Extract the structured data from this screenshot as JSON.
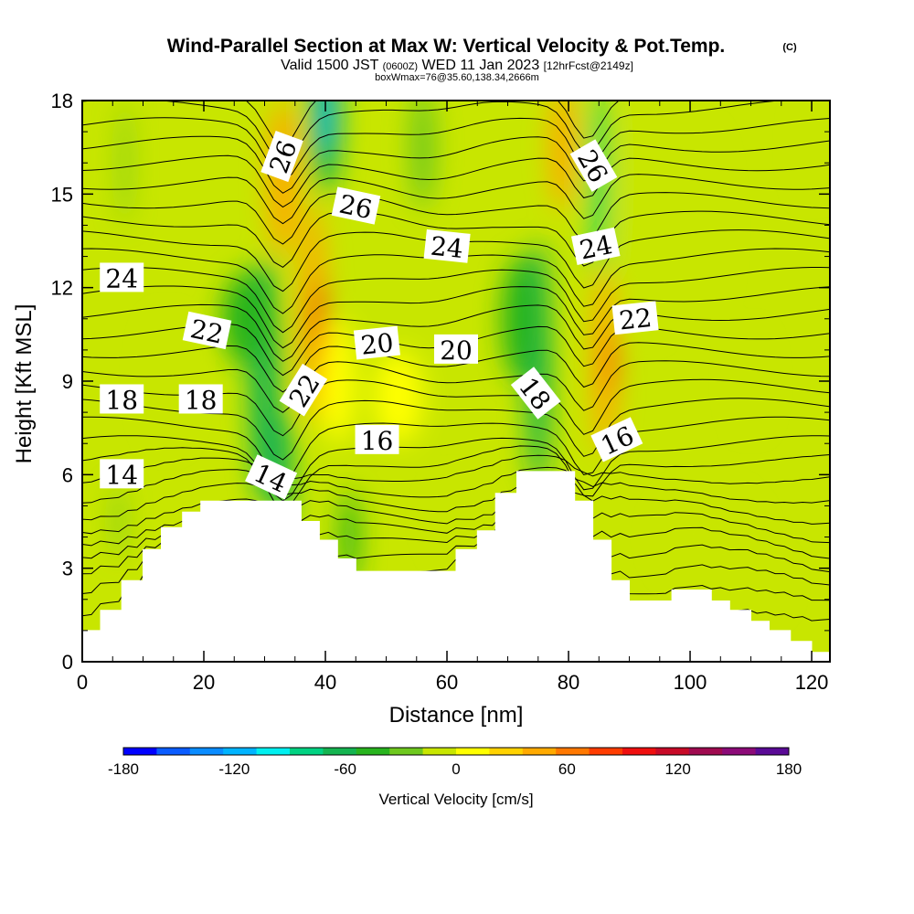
{
  "title": "Wind-Parallel Section at Max W: Vertical Velocity & Pot.Temp.",
  "title_mark": "(C)",
  "subtitle": {
    "valid": "Valid 1500 JST",
    "utc": "(0600Z)",
    "date": "WED 11 Jan 2023",
    "fcst": "[12hrFcst@2149z]"
  },
  "box_info": "boxWmax=76@35.60,138.34,2666m",
  "chart_data": {
    "type": "heatmap",
    "xlabel": "Distance [nm]",
    "ylabel": "Height [Kft MSL]",
    "xlim": [
      0,
      123
    ],
    "ylim": [
      0,
      18
    ],
    "x_ticks": [
      0,
      20,
      40,
      60,
      80,
      100,
      120
    ],
    "y_ticks": [
      0,
      3,
      6,
      9,
      12,
      15,
      18
    ],
    "grid": false,
    "colorbar": {
      "label": "Vertical Velocity [cm/s]",
      "min": -180,
      "max": 180,
      "step": 20,
      "tick_values": [
        -180,
        -120,
        -60,
        0,
        60,
        120,
        180
      ],
      "tick_labels": [
        "-180",
        "-120",
        "-60",
        "0",
        "60",
        "120",
        "180"
      ],
      "colors": [
        "#0000ff",
        "#0a5cff",
        "#0a8cff",
        "#00b4ff",
        "#00f0f0",
        "#00d282",
        "#14b450",
        "#28b41e",
        "#6ec81e",
        "#c8e600",
        "#ffff00",
        "#ffd200",
        "#ffaa00",
        "#ff7800",
        "#ff3c00",
        "#f00f0f",
        "#c80a28",
        "#a00a50",
        "#8c0a78",
        "#5a0a96"
      ]
    },
    "contour_field": "Potential Temperature (C)",
    "contour_labels": [
      {
        "text": "26",
        "x": 33,
        "y": 16.2,
        "angle": -70
      },
      {
        "text": "26",
        "x": 45,
        "y": 14.6,
        "angle": 12
      },
      {
        "text": "26",
        "x": 84,
        "y": 15.9,
        "angle": 60
      },
      {
        "text": "24",
        "x": 6.5,
        "y": 12.3,
        "angle": 0
      },
      {
        "text": "24",
        "x": 60,
        "y": 13.3,
        "angle": 6
      },
      {
        "text": "24",
        "x": 84.5,
        "y": 13.3,
        "angle": -12
      },
      {
        "text": "22",
        "x": 20.5,
        "y": 10.6,
        "angle": 12
      },
      {
        "text": "22",
        "x": 36.5,
        "y": 8.7,
        "angle": -58
      },
      {
        "text": "22",
        "x": 91,
        "y": 11.0,
        "angle": -6
      },
      {
        "text": "20",
        "x": 48.5,
        "y": 10.2,
        "angle": -6
      },
      {
        "text": "20",
        "x": 61.5,
        "y": 10.0,
        "angle": 0
      },
      {
        "text": "18",
        "x": 6.5,
        "y": 8.4,
        "angle": 0
      },
      {
        "text": "18",
        "x": 19.5,
        "y": 8.4,
        "angle": 0
      },
      {
        "text": "18",
        "x": 74.5,
        "y": 8.6,
        "angle": 52
      },
      {
        "text": "16",
        "x": 48.5,
        "y": 7.1,
        "angle": 0
      },
      {
        "text": "16",
        "x": 88,
        "y": 7.1,
        "angle": -25
      },
      {
        "text": "14",
        "x": 6.5,
        "y": 6.0,
        "angle": 0
      },
      {
        "text": "14",
        "x": 31,
        "y": 5.9,
        "angle": 25
      }
    ],
    "terrain_height": [
      [
        0,
        1.0
      ],
      [
        3,
        1.0
      ],
      [
        3,
        1.65
      ],
      [
        6.5,
        1.65
      ],
      [
        6.5,
        2.6
      ],
      [
        10,
        2.6
      ],
      [
        10,
        3.6
      ],
      [
        13,
        3.6
      ],
      [
        13,
        4.3
      ],
      [
        16.5,
        4.3
      ],
      [
        16.5,
        4.8
      ],
      [
        19.5,
        4.8
      ],
      [
        19.5,
        5.15
      ],
      [
        36,
        5.15
      ],
      [
        36,
        4.5
      ],
      [
        39,
        4.5
      ],
      [
        39,
        3.9
      ],
      [
        42,
        3.9
      ],
      [
        42,
        3.3
      ],
      [
        45,
        3.3
      ],
      [
        45,
        2.9
      ],
      [
        61.5,
        2.9
      ],
      [
        61.5,
        3.6
      ],
      [
        65,
        3.6
      ],
      [
        65,
        4.2
      ],
      [
        68,
        4.2
      ],
      [
        68,
        5.4
      ],
      [
        71.5,
        5.4
      ],
      [
        71.5,
        6.1
      ],
      [
        81,
        6.1
      ],
      [
        81,
        5.15
      ],
      [
        84,
        5.15
      ],
      [
        84,
        3.9
      ],
      [
        87,
        3.9
      ],
      [
        87,
        2.6
      ],
      [
        90,
        2.6
      ],
      [
        90,
        1.95
      ],
      [
        97,
        1.95
      ],
      [
        97,
        2.3
      ],
      [
        103.5,
        2.3
      ],
      [
        103.5,
        1.95
      ],
      [
        106.5,
        1.95
      ],
      [
        106.5,
        1.65
      ],
      [
        110,
        1.65
      ],
      [
        110,
        1.3
      ],
      [
        113,
        1.3
      ],
      [
        113,
        1.0
      ],
      [
        116.5,
        1.0
      ],
      [
        116.5,
        0.65
      ],
      [
        120,
        0.65
      ],
      [
        120,
        0.3
      ],
      [
        123,
        0.3
      ]
    ],
    "vertical_velocity_features": [
      {
        "x": 33,
        "y": 15.5,
        "w": 5,
        "h": 5,
        "value": 60
      },
      {
        "x": 38,
        "y": 11.2,
        "w": 4,
        "h": 7,
        "value": 70
      },
      {
        "x": 39,
        "y": 10.5,
        "w": 2,
        "h": 3.5,
        "value": 120
      },
      {
        "x": 42,
        "y": 9.0,
        "w": 6,
        "h": 4,
        "value": 30
      },
      {
        "x": 79,
        "y": 16.5,
        "w": 4,
        "h": 4,
        "value": 60
      },
      {
        "x": 86,
        "y": 9.6,
        "w": 4,
        "h": 6,
        "value": 60
      },
      {
        "x": 87,
        "y": 9.6,
        "w": 1.5,
        "h": 2,
        "value": 100
      },
      {
        "x": 52,
        "y": 8.5,
        "w": 8,
        "h": 3,
        "value": 20
      },
      {
        "x": 30,
        "y": 9.0,
        "w": 5,
        "h": 8,
        "value": -60
      },
      {
        "x": 27,
        "y": 11.0,
        "w": 8,
        "h": 3,
        "value": -40
      },
      {
        "x": 33,
        "y": 6.0,
        "w": 3,
        "h": 4,
        "value": -60
      },
      {
        "x": 40,
        "y": 17.5,
        "w": 5,
        "h": 5,
        "value": -60
      },
      {
        "x": 40,
        "y": 17.5,
        "w": 2,
        "h": 2.5,
        "value": -120
      },
      {
        "x": 44,
        "y": 4.0,
        "w": 3,
        "h": 3,
        "value": -40
      },
      {
        "x": 75,
        "y": 9.5,
        "w": 4,
        "h": 8,
        "value": -60
      },
      {
        "x": 72,
        "y": 11.0,
        "w": 6,
        "h": 4,
        "value": -40
      },
      {
        "x": 85,
        "y": 15.5,
        "w": 2.5,
        "h": 6,
        "value": -80
      },
      {
        "x": 7,
        "y": 16.0,
        "w": 1.5,
        "h": 4,
        "value": -20
      },
      {
        "x": 6,
        "y": 4.5,
        "w": 1.5,
        "h": 2.5,
        "value": -20
      },
      {
        "x": 56,
        "y": 16.5,
        "w": 4,
        "h": 4,
        "value": -20
      },
      {
        "x": 14,
        "y": 9.0,
        "w": 6,
        "h": 4,
        "value": 10
      },
      {
        "x": 93,
        "y": 14.5,
        "w": 7,
        "h": 8,
        "value": 10
      },
      {
        "x": 102,
        "y": 14.0,
        "w": 6,
        "h": 6,
        "value": 10
      },
      {
        "x": 110,
        "y": 9.0,
        "w": 4,
        "h": 3,
        "value": 10
      },
      {
        "x": 103,
        "y": 4.0,
        "w": 16,
        "h": 3,
        "value": 10
      },
      {
        "x": 110,
        "y": 2.5,
        "w": 10,
        "h": 2,
        "value": 10
      },
      {
        "x": 120,
        "y": 16.5,
        "w": 3,
        "h": 3,
        "value": 10
      },
      {
        "x": 62,
        "y": 4.5,
        "w": 8,
        "h": 2.5,
        "value": 10
      }
    ]
  }
}
